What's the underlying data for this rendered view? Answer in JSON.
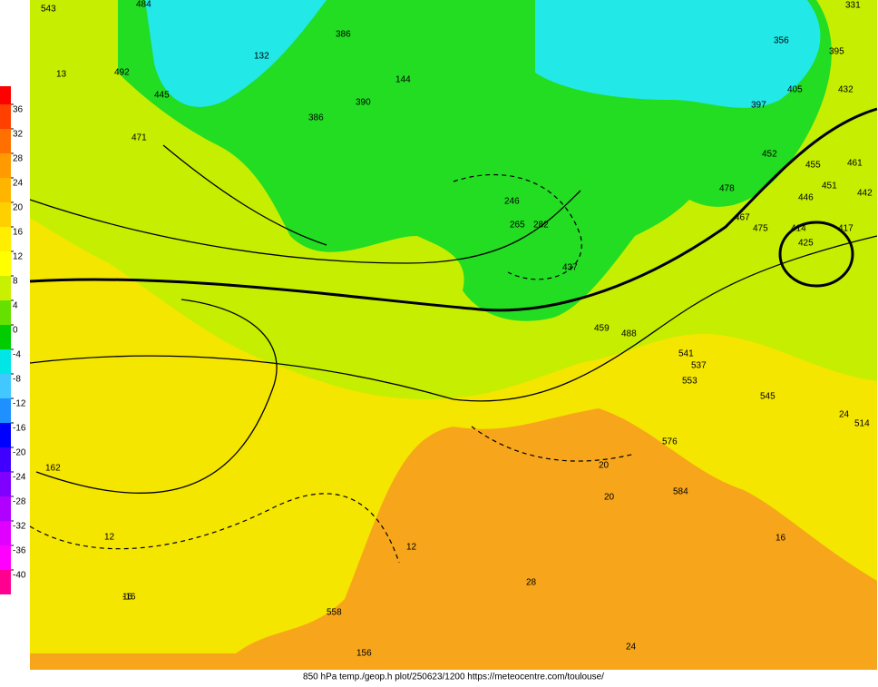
{
  "colorbar": {
    "ticks": [
      36,
      32,
      28,
      24,
      20,
      16,
      12,
      8,
      4,
      0,
      -4,
      -8,
      -12,
      -16,
      -20,
      -24,
      -28,
      -32,
      -36,
      -40
    ],
    "colors": [
      "#ff0000",
      "#ff4000",
      "#ff7000",
      "#ff9a00",
      "#ffb400",
      "#ffd000",
      "#ffee00",
      "#ffff00",
      "#c8f000",
      "#66e000",
      "#00cc00",
      "#00e6e6",
      "#40c8ff",
      "#1e90ff",
      "#0000ff",
      "#4000ff",
      "#8000ff",
      "#b000ff",
      "#e000ff",
      "#ff00ff",
      "#ff0090"
    ]
  },
  "map_labels": [
    "543",
    "484",
    "13",
    "492",
    "471",
    "445",
    "132",
    "386",
    "390",
    "386",
    "331",
    "356",
    "395",
    "405",
    "432",
    "397",
    "452",
    "461",
    "455",
    "478",
    "446",
    "467",
    "475",
    "414",
    "417",
    "425",
    "451",
    "442",
    "246",
    "265",
    "282",
    "437",
    "144",
    "488",
    "459",
    "541",
    "537",
    "553",
    "545",
    "514",
    "576",
    "584",
    "558",
    "156",
    "162",
    "12",
    "16",
    "20",
    "24",
    "28",
    "12",
    "16",
    "20",
    "24",
    "-16"
  ],
  "footer": "850 hPa temp./geop.h plot/250623/1200 https://meteocentre.com/toulouse/"
}
